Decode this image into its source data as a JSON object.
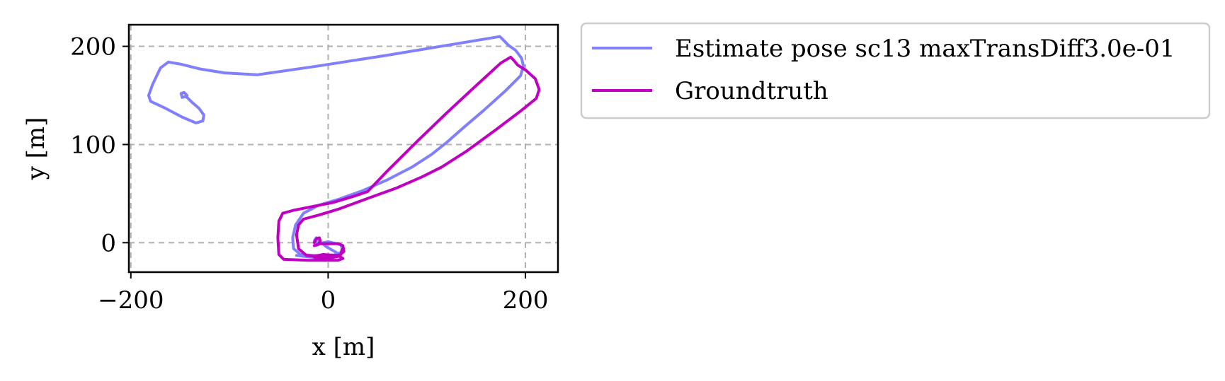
{
  "chart_data": {
    "type": "line",
    "xlabel": "x [m]",
    "ylabel": "y [m]",
    "xlim": [
      -202,
      233
    ],
    "ylim": [
      -30,
      222
    ],
    "xticks": [
      -200,
      0,
      200
    ],
    "xtick_labels": [
      "−200",
      "0",
      "200"
    ],
    "yticks": [
      0,
      100,
      200
    ],
    "ytick_labels": [
      "0",
      "100",
      "200"
    ],
    "grid": true,
    "legend_position": "outside-right-top",
    "series": [
      {
        "name": "Estimate pose sc13 maxTransDiff3.0e-01",
        "color": "#8080ff",
        "points": [
          [
            -143,
            150
          ],
          [
            -146,
            153
          ],
          [
            -149,
            152
          ],
          [
            -148,
            148
          ],
          [
            -144,
            149
          ],
          [
            -138,
            143
          ],
          [
            -131,
            137
          ],
          [
            -126,
            130
          ],
          [
            -127,
            124
          ],
          [
            -134,
            122
          ],
          [
            -148,
            128
          ],
          [
            -165,
            137
          ],
          [
            -180,
            144
          ],
          [
            -182,
            150
          ],
          [
            -178,
            161
          ],
          [
            -170,
            178
          ],
          [
            -162,
            184
          ],
          [
            -150,
            182
          ],
          [
            -130,
            177
          ],
          [
            -105,
            173
          ],
          [
            -72,
            171
          ],
          [
            -10,
            180
          ],
          [
            60,
            191
          ],
          [
            120,
            201
          ],
          [
            174,
            210
          ],
          [
            178,
            206
          ],
          [
            183,
            201
          ],
          [
            190,
            196
          ],
          [
            196,
            188
          ],
          [
            198,
            180
          ],
          [
            195,
            170
          ],
          [
            180,
            155
          ],
          [
            158,
            135
          ],
          [
            137,
            117
          ],
          [
            120,
            102
          ],
          [
            105,
            90
          ],
          [
            85,
            77
          ],
          [
            60,
            64
          ],
          [
            35,
            53
          ],
          [
            10,
            44
          ],
          [
            -10,
            38
          ],
          [
            -25,
            30
          ],
          [
            -33,
            18
          ],
          [
            -36,
            5
          ],
          [
            -35,
            -6
          ],
          [
            -28,
            -12
          ],
          [
            -15,
            -13
          ],
          [
            5,
            -13
          ],
          [
            15,
            -9
          ],
          [
            13,
            -2
          ],
          [
            0,
            1
          ],
          [
            -10,
            -1
          ],
          [
            -14,
            2
          ],
          [
            -12,
            5
          ],
          [
            -8,
            1
          ],
          [
            -2,
            -4
          ],
          [
            10,
            -11
          ],
          [
            5,
            -15
          ],
          [
            -15,
            -15
          ],
          [
            -32,
            -13
          ]
        ]
      },
      {
        "name": "Groundtruth",
        "color": "#c000c0",
        "points": [
          [
            -14,
            0
          ],
          [
            -12,
            4
          ],
          [
            -9,
            5
          ],
          [
            -8,
            2
          ],
          [
            -10,
            -2
          ],
          [
            -14,
            -3
          ],
          [
            -8,
            -1
          ],
          [
            0,
            -1
          ],
          [
            10,
            -1
          ],
          [
            15,
            -3
          ],
          [
            16,
            -9
          ],
          [
            10,
            -14
          ],
          [
            0,
            -16
          ],
          [
            -10,
            -17
          ],
          [
            -15,
            -14
          ],
          [
            -5,
            -12
          ],
          [
            10,
            -13
          ],
          [
            15,
            -16
          ],
          [
            10,
            -18
          ],
          [
            -20,
            -18
          ],
          [
            -45,
            -17
          ],
          [
            -50,
            -12
          ],
          [
            -51,
            5
          ],
          [
            -50,
            22
          ],
          [
            -46,
            30
          ],
          [
            -35,
            33
          ],
          [
            -15,
            37
          ],
          [
            5,
            41
          ],
          [
            25,
            47
          ],
          [
            40,
            52
          ],
          [
            60,
            73
          ],
          [
            90,
            103
          ],
          [
            120,
            132
          ],
          [
            150,
            160
          ],
          [
            175,
            183
          ],
          [
            185,
            189
          ],
          [
            188,
            186
          ],
          [
            192,
            181
          ],
          [
            200,
            176
          ],
          [
            210,
            167
          ],
          [
            214,
            156
          ],
          [
            211,
            147
          ],
          [
            195,
            134
          ],
          [
            170,
            115
          ],
          [
            140,
            93
          ],
          [
            115,
            77
          ],
          [
            95,
            67
          ],
          [
            70,
            56
          ],
          [
            40,
            45
          ],
          [
            10,
            34
          ],
          [
            -10,
            28
          ],
          [
            -25,
            24
          ],
          [
            -30,
            18
          ],
          [
            -32,
            8
          ],
          [
            -30,
            -6
          ],
          [
            -22,
            -13
          ],
          [
            -10,
            -14
          ],
          [
            5,
            -14
          ],
          [
            13,
            -12
          ],
          [
            14,
            -7
          ]
        ]
      }
    ]
  }
}
